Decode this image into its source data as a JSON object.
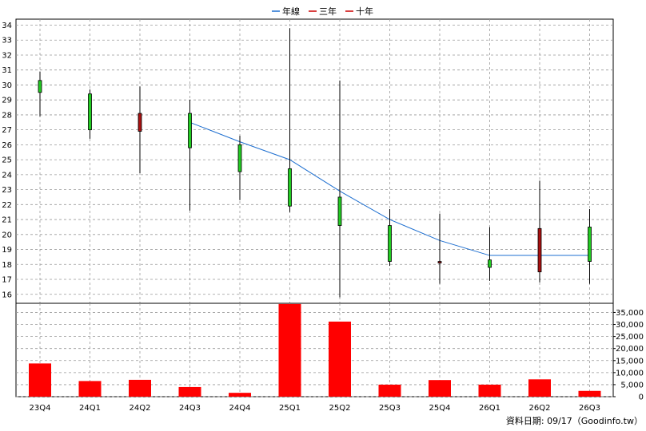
{
  "legend": [
    {
      "name": "年線",
      "color": "#1e6fd0"
    },
    {
      "name": "三年",
      "color": "#cc0000"
    },
    {
      "name": "十年",
      "color": "#cc0000"
    }
  ],
  "footer": {
    "text": "資料日期: 09/17（Goodinfo.tw）"
  },
  "colors": {
    "up": "#22cc22",
    "down": "#aa1111",
    "volume": "#ff0000",
    "ma": "#1e6fd0"
  },
  "chart_data": [
    {
      "type": "candlestick",
      "categories": [
        "23Q4",
        "24Q1",
        "24Q2",
        "24Q3",
        "24Q4",
        "25Q1",
        "25Q2",
        "25Q3",
        "25Q4",
        "26Q1",
        "26Q2",
        "26Q3"
      ],
      "ohlc": [
        {
          "open": 29.5,
          "high": 30.9,
          "low": 27.9,
          "close": 30.3
        },
        {
          "open": 27.0,
          "high": 29.7,
          "low": 26.4,
          "close": 29.4
        },
        {
          "open": 28.1,
          "high": 29.9,
          "low": 24.1,
          "close": 26.9
        },
        {
          "open": 25.8,
          "high": 29.0,
          "low": 21.6,
          "close": 28.1
        },
        {
          "open": 24.2,
          "high": 26.6,
          "low": 22.3,
          "close": 26.0
        },
        {
          "open": 21.9,
          "high": 33.8,
          "low": 21.5,
          "close": 24.4
        },
        {
          "open": 20.6,
          "high": 30.3,
          "low": 15.8,
          "close": 22.5
        },
        {
          "open": 18.2,
          "high": 21.7,
          "low": 17.9,
          "close": 20.6
        },
        {
          "open": 18.2,
          "high": 21.4,
          "low": 16.7,
          "close": 18.1
        },
        {
          "open": 17.8,
          "high": 20.5,
          "low": 16.9,
          "close": 18.3
        },
        {
          "open": 20.4,
          "high": 23.6,
          "low": 16.8,
          "close": 17.5
        },
        {
          "open": 18.2,
          "high": 21.7,
          "low": 16.7,
          "close": 20.5
        }
      ],
      "moving_average": {
        "name": "年線",
        "values": [
          null,
          null,
          null,
          27.5,
          26.2,
          25.0,
          22.9,
          21.0,
          19.6,
          18.6,
          18.6,
          18.6
        ]
      },
      "ylim": [
        15.4,
        34.4
      ],
      "yticks": [
        16,
        17,
        18,
        19,
        20,
        21,
        22,
        23,
        24,
        25,
        26,
        27,
        28,
        29,
        30,
        31,
        32,
        33,
        34
      ],
      "grid": true
    },
    {
      "type": "bar",
      "categories": [
        "23Q4",
        "24Q1",
        "24Q2",
        "24Q3",
        "24Q4",
        "25Q1",
        "25Q2",
        "25Q3",
        "25Q4",
        "26Q1",
        "26Q2",
        "26Q3"
      ],
      "values": [
        13800,
        6500,
        7000,
        4000,
        1600,
        38500,
        31200,
        5000,
        6900,
        5000,
        7200,
        2400
      ],
      "ylim": [
        0,
        38800
      ],
      "yticks": [
        0,
        5000,
        10000,
        15000,
        20000,
        25000,
        30000,
        35000
      ],
      "ytick_labels": [
        "0",
        "5,000",
        "10,000",
        "15,000",
        "20,000",
        "25,000",
        "30,000",
        "35,000"
      ],
      "grid": true
    }
  ]
}
